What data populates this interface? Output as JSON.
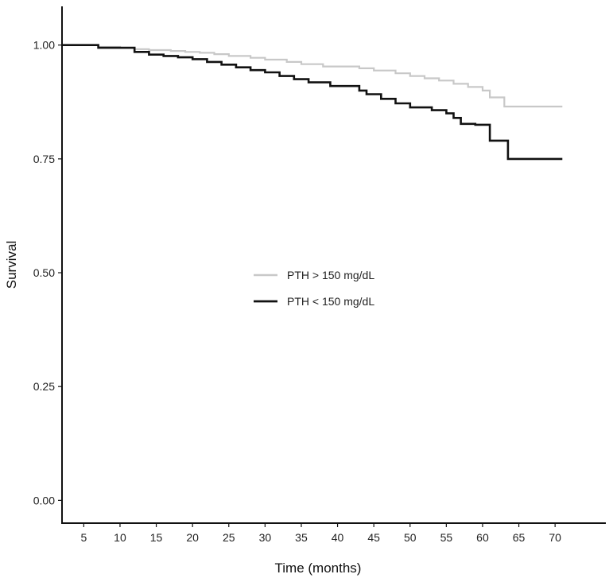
{
  "chart_data": {
    "type": "line",
    "title": "",
    "xlabel": "Time (months)",
    "ylabel": "Survival",
    "xlim": [
      2,
      77
    ],
    "ylim": [
      -0.05,
      1.085
    ],
    "x_ticks": [
      5,
      10,
      15,
      20,
      25,
      30,
      35,
      40,
      45,
      50,
      55,
      60,
      65,
      70
    ],
    "x_tick_labels": [
      "5",
      "10",
      "15",
      "20",
      "25",
      "30",
      "35",
      "40",
      "45",
      "50",
      "55",
      "60",
      "65",
      "70"
    ],
    "y_ticks": [
      0,
      0.25,
      0.5,
      0.75,
      1.0
    ],
    "y_tick_labels": [
      "0.00",
      "0.25",
      "0.50",
      "0.75",
      "1.00"
    ],
    "grid": false,
    "legend_position": "center",
    "series": [
      {
        "name": "PTH > 150 mg/dL",
        "color": "#c8c8c8",
        "step": true,
        "x": [
          2,
          7,
          10,
          12,
          14,
          17,
          19,
          21,
          23,
          25,
          28,
          30,
          33,
          35,
          38,
          43,
          45,
          48,
          50,
          52,
          54,
          56,
          58,
          60,
          61,
          63,
          71
        ],
        "y": [
          1.0,
          0.996,
          0.994,
          0.991,
          0.989,
          0.987,
          0.985,
          0.983,
          0.98,
          0.976,
          0.972,
          0.968,
          0.963,
          0.958,
          0.953,
          0.949,
          0.944,
          0.938,
          0.932,
          0.927,
          0.922,
          0.915,
          0.908,
          0.9,
          0.885,
          0.865,
          0.865
        ]
      },
      {
        "name": "PTH < 150 mg/dL",
        "color": "#111111",
        "step": true,
        "x": [
          2,
          7,
          12,
          14,
          16,
          18,
          20,
          22,
          24,
          26,
          28,
          30,
          32,
          34,
          36,
          39,
          43,
          44,
          46,
          48,
          50,
          53,
          55,
          56,
          57,
          59,
          61,
          63.5,
          71
        ],
        "y": [
          1.0,
          0.994,
          0.985,
          0.979,
          0.976,
          0.973,
          0.969,
          0.963,
          0.957,
          0.951,
          0.945,
          0.94,
          0.932,
          0.925,
          0.918,
          0.91,
          0.9,
          0.892,
          0.882,
          0.872,
          0.863,
          0.857,
          0.85,
          0.84,
          0.827,
          0.825,
          0.79,
          0.75,
          0.75
        ]
      }
    ]
  }
}
